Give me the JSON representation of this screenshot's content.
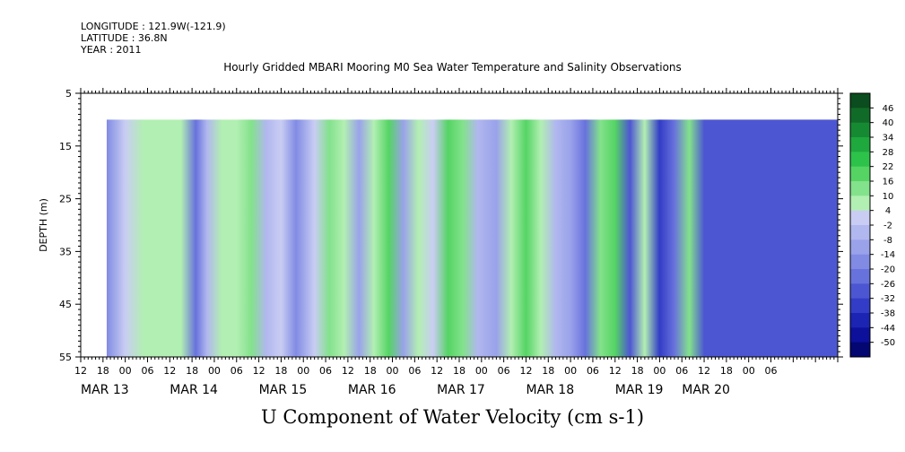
{
  "meta": {
    "longitude": "LONGITUDE : 121.9W(-121.9)",
    "latitude": "LATITUDE : 36.8N",
    "year": "YEAR : 2011"
  },
  "header": {
    "title": "Hourly Gridded MBARI Mooring M0 Sea Water Temperature and Salinity Observations"
  },
  "chart_data": {
    "type": "heatmap",
    "title": "U Component of Water Velocity (cm s-1)",
    "ylabel": "DEPTH (m)",
    "xlabel": "",
    "y_axis": {
      "range": [
        5,
        55
      ],
      "inverted": true,
      "ticks": [
        5,
        15,
        25,
        35,
        45,
        55
      ]
    },
    "x_axis": {
      "range_hours": [
        0,
        204
      ],
      "hour_ticks": [
        {
          "h": 0,
          "label": "12"
        },
        {
          "h": 6,
          "label": "18"
        },
        {
          "h": 12,
          "label": "00"
        },
        {
          "h": 18,
          "label": "06"
        },
        {
          "h": 24,
          "label": "12"
        },
        {
          "h": 30,
          "label": "18"
        },
        {
          "h": 36,
          "label": "00"
        },
        {
          "h": 42,
          "label": "06"
        },
        {
          "h": 48,
          "label": "12"
        },
        {
          "h": 54,
          "label": "18"
        },
        {
          "h": 60,
          "label": "00"
        },
        {
          "h": 66,
          "label": "06"
        },
        {
          "h": 72,
          "label": "12"
        },
        {
          "h": 78,
          "label": "18"
        },
        {
          "h": 84,
          "label": "00"
        },
        {
          "h": 90,
          "label": "06"
        },
        {
          "h": 96,
          "label": "12"
        },
        {
          "h": 102,
          "label": "18"
        },
        {
          "h": 108,
          "label": "00"
        },
        {
          "h": 114,
          "label": "06"
        },
        {
          "h": 120,
          "label": "12"
        },
        {
          "h": 126,
          "label": "18"
        },
        {
          "h": 132,
          "label": "00"
        },
        {
          "h": 138,
          "label": "06"
        },
        {
          "h": 144,
          "label": "12"
        },
        {
          "h": 150,
          "label": "18"
        },
        {
          "h": 156,
          "label": "00"
        },
        {
          "h": 162,
          "label": "06"
        },
        {
          "h": 168,
          "label": "12"
        },
        {
          "h": 174,
          "label": "18"
        },
        {
          "h": 180,
          "label": "00"
        },
        {
          "h": 186,
          "label": "06"
        }
      ],
      "date_ticks": [
        {
          "h": 0,
          "label": "MAR 13"
        },
        {
          "h": 24,
          "label": "MAR 14"
        },
        {
          "h": 48,
          "label": "MAR 15"
        },
        {
          "h": 72,
          "label": "MAR 16"
        },
        {
          "h": 96,
          "label": "MAR 17"
        },
        {
          "h": 120,
          "label": "MAR 18"
        },
        {
          "h": 144,
          "label": "MAR 19"
        },
        {
          "h": 162,
          "label": "MAR 20"
        }
      ]
    },
    "data_extent": {
      "start_hour": 7,
      "end_hour": 204,
      "min_depth": 10,
      "max_depth": 55
    },
    "bands": [
      {
        "h": 7,
        "v": -14
      },
      {
        "h": 12,
        "v": 3
      },
      {
        "h": 17,
        "v": 10
      },
      {
        "h": 22,
        "v": 5
      },
      {
        "h": 27,
        "v": 8
      },
      {
        "h": 31,
        "v": -20
      },
      {
        "h": 34,
        "v": -4
      },
      {
        "h": 38,
        "v": 8
      },
      {
        "h": 42,
        "v": 6
      },
      {
        "h": 46,
        "v": 12
      },
      {
        "h": 50,
        "v": -2
      },
      {
        "h": 54,
        "v": 4
      },
      {
        "h": 58,
        "v": -14
      },
      {
        "h": 63,
        "v": 4
      },
      {
        "h": 67,
        "v": 16
      },
      {
        "h": 71,
        "v": 8
      },
      {
        "h": 75,
        "v": -8
      },
      {
        "h": 79,
        "v": 10
      },
      {
        "h": 83,
        "v": 22
      },
      {
        "h": 87,
        "v": -10
      },
      {
        "h": 91,
        "v": 10
      },
      {
        "h": 95,
        "v": 4
      },
      {
        "h": 99,
        "v": 18
      },
      {
        "h": 103,
        "v": 12
      },
      {
        "h": 107,
        "v": -4
      },
      {
        "h": 112,
        "v": -8
      },
      {
        "h": 116,
        "v": 10
      },
      {
        "h": 120,
        "v": 22
      },
      {
        "h": 124,
        "v": 10
      },
      {
        "h": 128,
        "v": -2
      },
      {
        "h": 132,
        "v": -8
      },
      {
        "h": 136,
        "v": -20
      },
      {
        "h": 140,
        "v": 14
      },
      {
        "h": 144,
        "v": 22
      },
      {
        "h": 148,
        "v": -26
      },
      {
        "h": 152,
        "v": 6
      },
      {
        "h": 156,
        "v": -32
      },
      {
        "h": 160,
        "v": -20
      },
      {
        "h": 164,
        "v": 12
      },
      {
        "h": 168,
        "v": -26
      }
    ],
    "colorbar": {
      "labels": [
        "46",
        "40",
        "34",
        "28",
        "22",
        "16",
        "10",
        "4",
        "-2",
        "-8",
        "-14",
        "-20",
        "-26",
        "-32",
        "-38",
        "-44",
        "-50"
      ],
      "colors": [
        "#0b4d1e",
        "#116b28",
        "#168a32",
        "#1fa83d",
        "#2dc24a",
        "#55d464",
        "#83e28c",
        "#b2efb2",
        "#c9cdf3",
        "#b1b7ef",
        "#9aa2ea",
        "#818be4",
        "#6872dc",
        "#4d56d2",
        "#323cc6",
        "#1c24b4",
        "#0c109a",
        "#040672"
      ]
    }
  }
}
